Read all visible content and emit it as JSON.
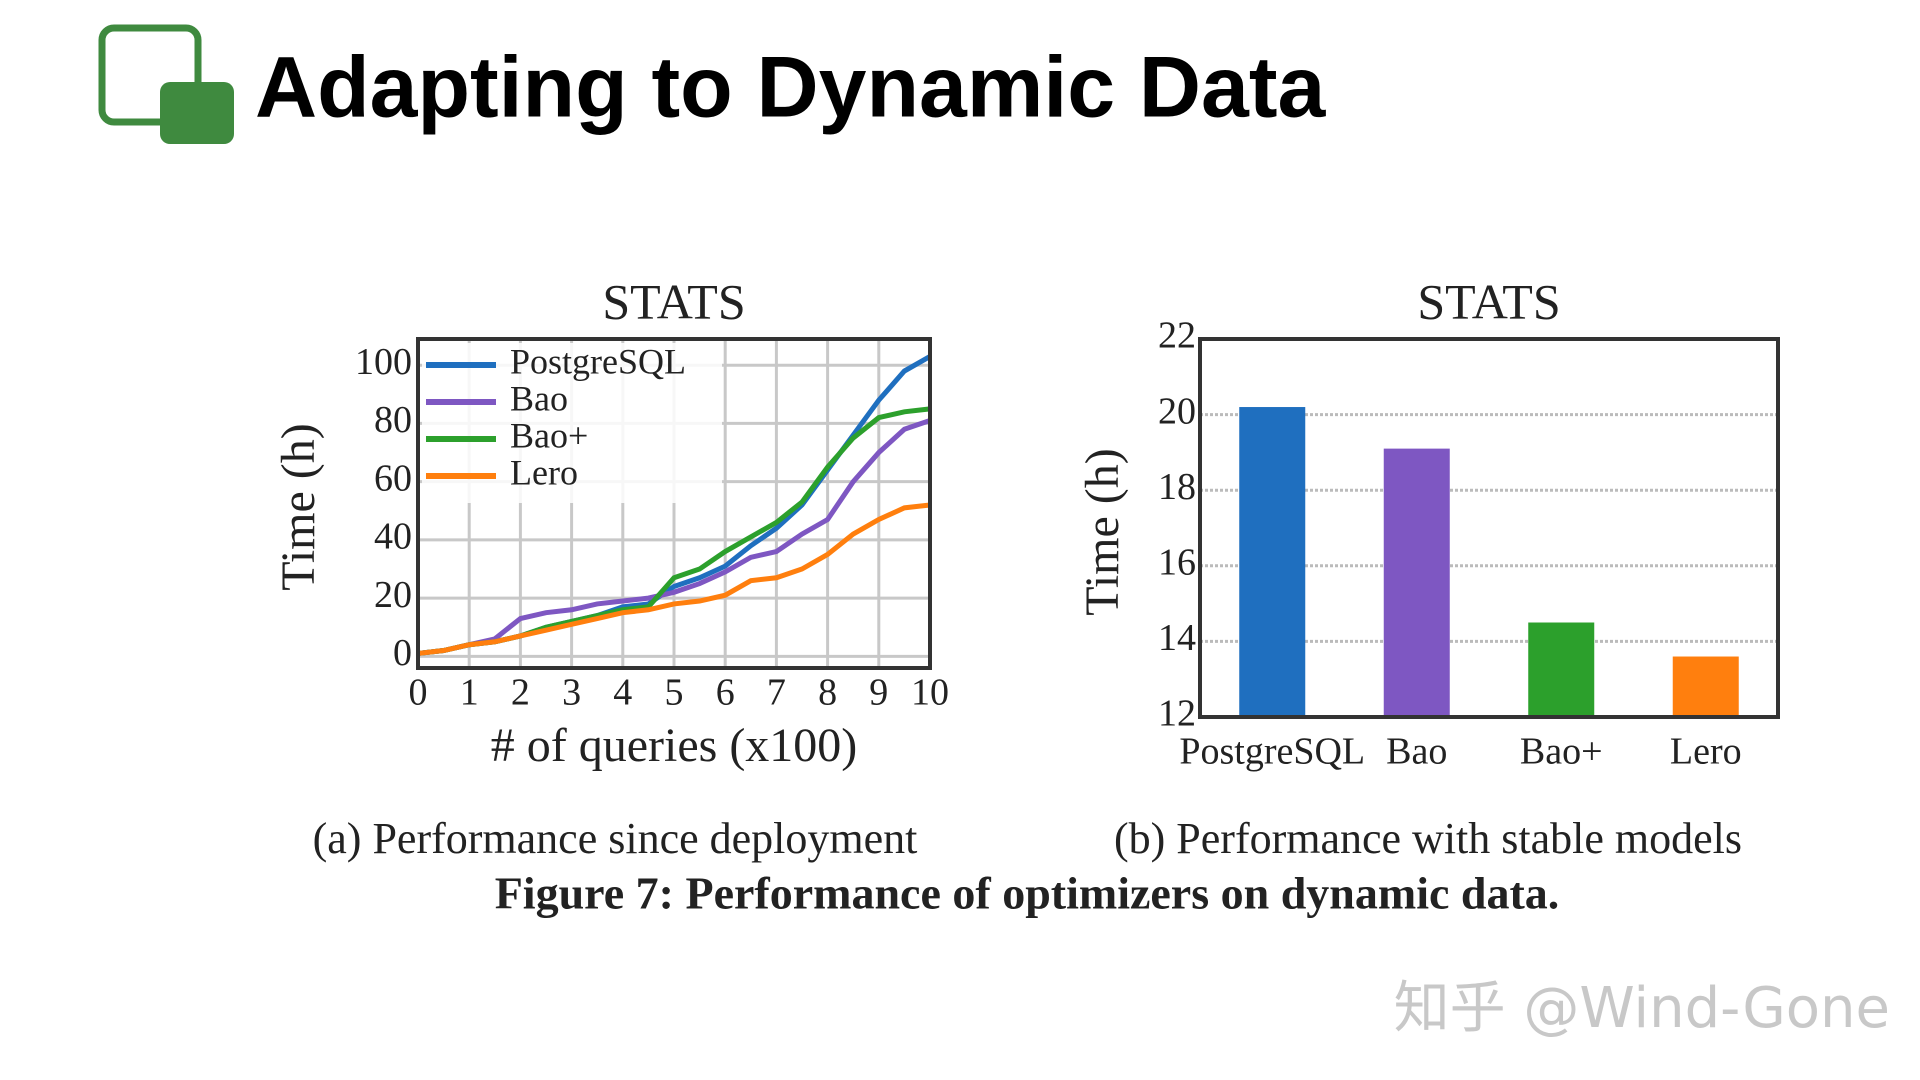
{
  "title": "Adapting to Dynamic Data",
  "subcaptions": [
    "(a) Performance since deployment",
    "(b) Performance with stable models"
  ],
  "figure_caption": "Figure 7: Performance of optimizers on dynamic data.",
  "watermark": "知乎 @Wind-Gone",
  "chart_data": [
    {
      "type": "line",
      "title": "STATS",
      "x_label": "# of queries (x100)",
      "y_label": "Time (h)",
      "xlim": [
        0,
        10
      ],
      "ylim": [
        -4,
        109
      ],
      "xticks": [
        0,
        1,
        2,
        3,
        4,
        5,
        6,
        7,
        8,
        9,
        10
      ],
      "yticks": [
        0,
        20,
        40,
        60,
        80,
        100
      ],
      "grid": true,
      "legend": "upper left",
      "x": [
        0,
        0.5,
        1,
        1.5,
        2,
        2.5,
        3,
        3.5,
        4,
        4.5,
        5,
        5.5,
        6,
        6.5,
        7,
        7.5,
        8,
        8.5,
        9,
        9.5,
        10
      ],
      "series": [
        {
          "name": "PostgreSQL",
          "color": "#1f6fbf",
          "values": [
            1,
            2,
            4,
            5,
            7,
            10,
            12,
            14,
            17,
            18,
            24,
            27,
            31,
            38,
            44,
            52,
            64,
            76,
            88,
            98,
            103
          ]
        },
        {
          "name": "Bao",
          "color": "#7e57c2",
          "values": [
            1,
            2,
            4,
            6,
            13,
            15,
            16,
            18,
            19,
            20,
            22,
            25,
            29,
            34,
            36,
            42,
            47,
            60,
            70,
            78,
            81
          ]
        },
        {
          "name": "Bao+",
          "color": "#2ca02c",
          "values": [
            1,
            2,
            4,
            5,
            7,
            10,
            12,
            14,
            16,
            17,
            27,
            30,
            36,
            41,
            46,
            53,
            65,
            75,
            82,
            84,
            85
          ]
        },
        {
          "name": "Lero",
          "color": "#ff7f0e",
          "values": [
            1,
            2,
            4,
            5,
            7,
            9,
            11,
            13,
            15,
            16,
            18,
            19,
            21,
            26,
            27,
            30,
            35,
            42,
            47,
            51,
            52
          ]
        }
      ]
    },
    {
      "type": "bar",
      "title": "STATS",
      "y_label": "Time (h)",
      "categories": [
        "PostgreSQL",
        "Bao",
        "Bao+",
        "Lero"
      ],
      "values": [
        20.2,
        19.1,
        14.5,
        13.6
      ],
      "colors": [
        "#1f6fbf",
        "#7e57c2",
        "#2ca02c",
        "#ff7f0e"
      ],
      "ylim": [
        12,
        22
      ],
      "yticks": [
        12,
        14,
        16,
        18,
        20,
        22
      ],
      "grid": true
    }
  ]
}
